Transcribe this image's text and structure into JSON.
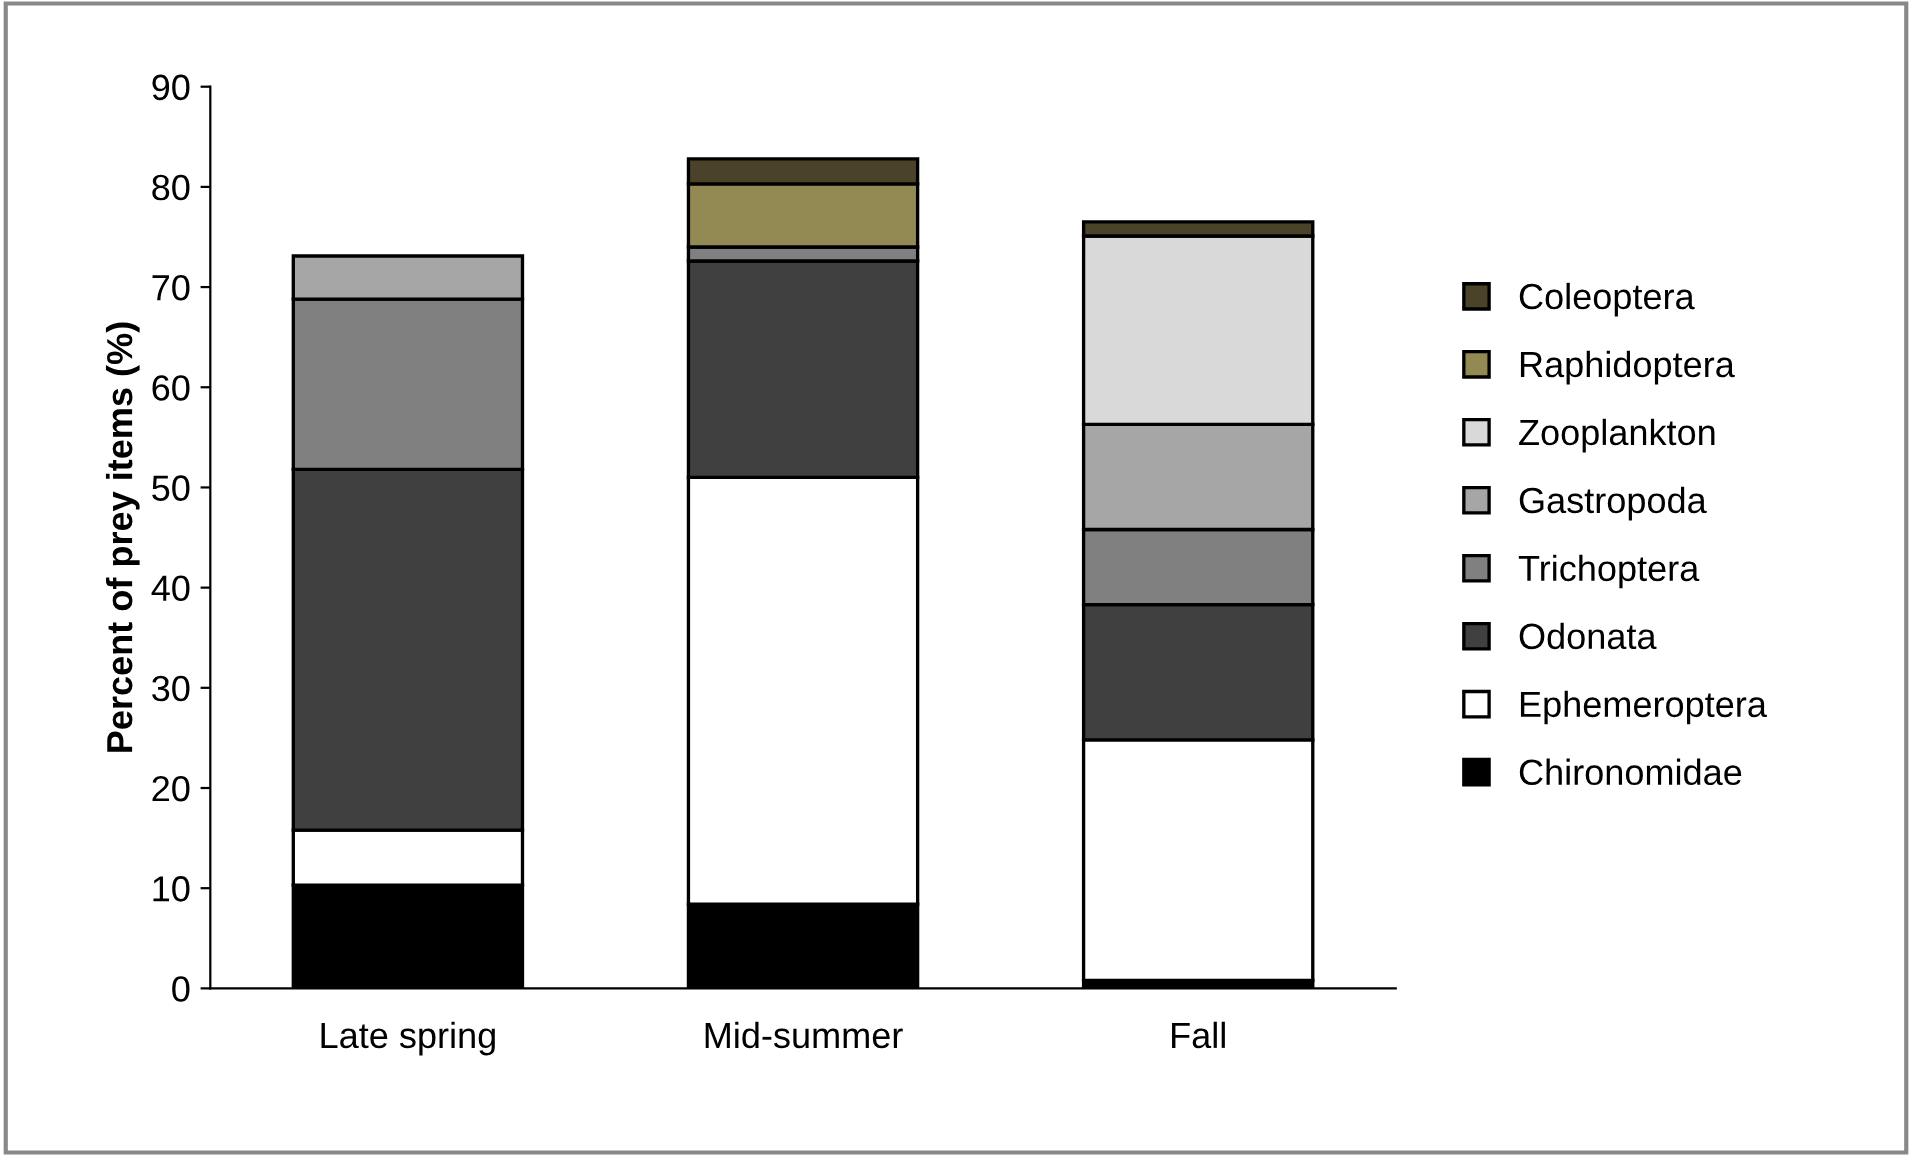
{
  "chart_data": {
    "type": "bar",
    "stacked": true,
    "ylabel": "Percent of prey items (%)",
    "categories": [
      "Late spring",
      "Mid-summer",
      "Fall"
    ],
    "series": [
      {
        "name": "Chironomidae",
        "color": "#000000",
        "values": [
          10.3,
          8.4,
          0.8
        ]
      },
      {
        "name": "Ephemeroptera",
        "color": "#ffffff",
        "values": [
          5.5,
          42.6,
          24
        ]
      },
      {
        "name": "Odonata",
        "color": "#404040",
        "values": [
          36,
          21.6,
          13.5
        ]
      },
      {
        "name": "Trichoptera",
        "color": "#808080",
        "values": [
          17,
          1.4,
          7.5
        ]
      },
      {
        "name": "Gastropoda",
        "color": "#a6a6a6",
        "values": [
          4.3,
          null,
          10.5
        ]
      },
      {
        "name": "Zooplankton",
        "color": "#d9d9d9",
        "values": [
          null,
          null,
          18.8
        ]
      },
      {
        "name": "Raphidoptera",
        "color": "#938953",
        "values": [
          null,
          6.3,
          null
        ]
      },
      {
        "name": "Coleoptera",
        "color": "#4a4229",
        "values": [
          null,
          2.5,
          1.4
        ]
      }
    ],
    "ylim": [
      0,
      90
    ],
    "yticks": [
      0,
      10,
      20,
      30,
      40,
      50,
      60,
      70,
      80,
      90
    ],
    "grid": false,
    "legend": "right"
  }
}
